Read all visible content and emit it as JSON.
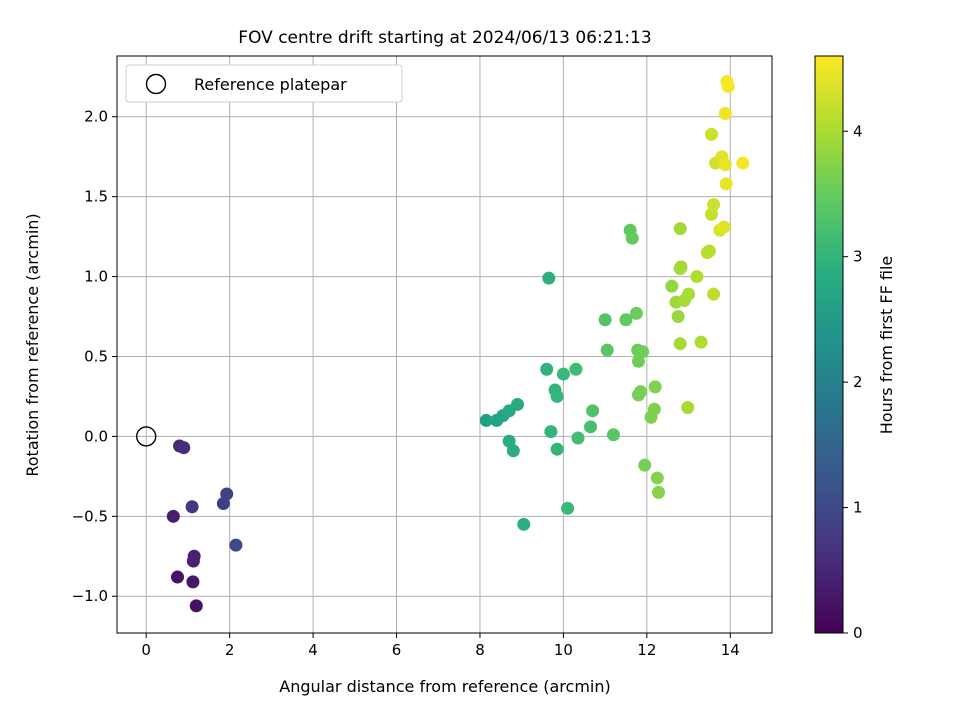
{
  "chart_data": {
    "type": "scatter",
    "title": "FOV centre drift starting at 2024/06/13 06:21:13",
    "xlabel": "Angular distance from reference (arcmin)",
    "ylabel": "Rotation from reference (arcmin)",
    "xlim": [
      -0.7,
      15.0
    ],
    "ylim": [
      -1.23,
      2.38
    ],
    "xticks": [
      0,
      2,
      4,
      6,
      8,
      10,
      12,
      14
    ],
    "xtick_labels": [
      "0",
      "2",
      "4",
      "6",
      "8",
      "10",
      "12",
      "14"
    ],
    "yticks": [
      -1.0,
      -0.5,
      0.0,
      0.5,
      1.0,
      1.5,
      2.0
    ],
    "ytick_labels": [
      "−1.0",
      "−0.5",
      "0.0",
      "0.5",
      "1.0",
      "1.5",
      "2.0"
    ],
    "grid": true,
    "legend": {
      "location": "upper left",
      "entries": [
        "Reference platepar"
      ]
    },
    "reference_point": {
      "x": 0.0,
      "y": 0.0
    },
    "colorbar": {
      "label": "Hours from first FF file",
      "colormap": "viridis",
      "range": [
        0,
        4.6
      ],
      "ticks": [
        0,
        1,
        2,
        3,
        4
      ],
      "tick_labels": [
        "0",
        "1",
        "2",
        "3",
        "4"
      ]
    },
    "points": [
      {
        "x": 1.2,
        "y": -1.06,
        "c": 0.2
      },
      {
        "x": 0.75,
        "y": -0.88,
        "c": 0.25
      },
      {
        "x": 1.12,
        "y": -0.91,
        "c": 0.3
      },
      {
        "x": 0.65,
        "y": -0.5,
        "c": 0.35
      },
      {
        "x": 1.15,
        "y": -0.75,
        "c": 0.4
      },
      {
        "x": 1.13,
        "y": -0.78,
        "c": 0.45
      },
      {
        "x": 0.8,
        "y": -0.06,
        "c": 0.5
      },
      {
        "x": 0.9,
        "y": -0.07,
        "c": 0.6
      },
      {
        "x": 1.1,
        "y": -0.44,
        "c": 0.75
      },
      {
        "x": 1.85,
        "y": -0.42,
        "c": 0.85
      },
      {
        "x": 1.93,
        "y": -0.36,
        "c": 0.9
      },
      {
        "x": 2.15,
        "y": -0.68,
        "c": 1.0
      },
      {
        "x": 8.15,
        "y": 0.1,
        "c": 2.6
      },
      {
        "x": 8.4,
        "y": 0.1,
        "c": 2.65
      },
      {
        "x": 8.55,
        "y": 0.13,
        "c": 2.7
      },
      {
        "x": 8.7,
        "y": 0.16,
        "c": 2.75
      },
      {
        "x": 8.9,
        "y": 0.2,
        "c": 2.8
      },
      {
        "x": 8.7,
        "y": -0.03,
        "c": 2.82
      },
      {
        "x": 8.8,
        "y": -0.09,
        "c": 2.85
      },
      {
        "x": 9.05,
        "y": -0.55,
        "c": 2.9
      },
      {
        "x": 9.65,
        "y": 0.99,
        "c": 2.9
      },
      {
        "x": 9.6,
        "y": 0.42,
        "c": 2.95
      },
      {
        "x": 9.7,
        "y": 0.03,
        "c": 3.0
      },
      {
        "x": 9.8,
        "y": 0.29,
        "c": 3.0
      },
      {
        "x": 9.85,
        "y": 0.25,
        "c": 3.05
      },
      {
        "x": 9.85,
        "y": -0.08,
        "c": 3.05
      },
      {
        "x": 10.0,
        "y": 0.39,
        "c": 3.1
      },
      {
        "x": 10.1,
        "y": -0.45,
        "c": 3.1
      },
      {
        "x": 10.3,
        "y": 0.42,
        "c": 3.15
      },
      {
        "x": 10.35,
        "y": -0.01,
        "c": 3.2
      },
      {
        "x": 10.65,
        "y": 0.06,
        "c": 3.25
      },
      {
        "x": 10.7,
        "y": 0.16,
        "c": 3.3
      },
      {
        "x": 11.0,
        "y": 0.73,
        "c": 3.35
      },
      {
        "x": 11.05,
        "y": 0.54,
        "c": 3.4
      },
      {
        "x": 11.2,
        "y": 0.01,
        "c": 3.4
      },
      {
        "x": 11.5,
        "y": 0.73,
        "c": 3.45
      },
      {
        "x": 11.6,
        "y": 1.29,
        "c": 3.45
      },
      {
        "x": 11.65,
        "y": 1.24,
        "c": 3.5
      },
      {
        "x": 11.75,
        "y": 0.77,
        "c": 3.55
      },
      {
        "x": 11.78,
        "y": 0.54,
        "c": 3.55
      },
      {
        "x": 11.8,
        "y": 0.47,
        "c": 3.6
      },
      {
        "x": 11.9,
        "y": 0.53,
        "c": 3.6
      },
      {
        "x": 11.8,
        "y": 0.26,
        "c": 3.62
      },
      {
        "x": 11.85,
        "y": 0.28,
        "c": 3.65
      },
      {
        "x": 11.95,
        "y": -0.18,
        "c": 3.65
      },
      {
        "x": 12.1,
        "y": 0.12,
        "c": 3.7
      },
      {
        "x": 12.18,
        "y": 0.17,
        "c": 3.7
      },
      {
        "x": 12.2,
        "y": 0.31,
        "c": 3.72
      },
      {
        "x": 12.25,
        "y": -0.26,
        "c": 3.75
      },
      {
        "x": 12.28,
        "y": -0.35,
        "c": 3.75
      },
      {
        "x": 12.6,
        "y": 0.94,
        "c": 3.85
      },
      {
        "x": 12.7,
        "y": 0.84,
        "c": 3.9
      },
      {
        "x": 12.75,
        "y": 0.75,
        "c": 3.9
      },
      {
        "x": 12.8,
        "y": 1.3,
        "c": 3.95
      },
      {
        "x": 12.8,
        "y": 1.05,
        "c": 3.95
      },
      {
        "x": 12.82,
        "y": 1.06,
        "c": 3.98
      },
      {
        "x": 12.8,
        "y": 0.58,
        "c": 3.98
      },
      {
        "x": 12.9,
        "y": 0.85,
        "c": 4.0
      },
      {
        "x": 13.0,
        "y": 0.89,
        "c": 4.0
      },
      {
        "x": 12.98,
        "y": 0.18,
        "c": 4.0
      },
      {
        "x": 13.2,
        "y": 1.0,
        "c": 4.05
      },
      {
        "x": 13.3,
        "y": 0.59,
        "c": 4.05
      },
      {
        "x": 13.45,
        "y": 1.15,
        "c": 4.1
      },
      {
        "x": 13.5,
        "y": 1.16,
        "c": 4.1
      },
      {
        "x": 13.6,
        "y": 0.89,
        "c": 4.15
      },
      {
        "x": 13.55,
        "y": 1.39,
        "c": 4.2
      },
      {
        "x": 13.6,
        "y": 1.45,
        "c": 4.25
      },
      {
        "x": 13.55,
        "y": 1.89,
        "c": 4.25
      },
      {
        "x": 13.65,
        "y": 1.71,
        "c": 4.3
      },
      {
        "x": 13.75,
        "y": 1.29,
        "c": 4.35
      },
      {
        "x": 13.85,
        "y": 1.31,
        "c": 4.4
      },
      {
        "x": 13.8,
        "y": 1.75,
        "c": 4.4
      },
      {
        "x": 13.88,
        "y": 1.7,
        "c": 4.45
      },
      {
        "x": 13.9,
        "y": 1.58,
        "c": 4.45
      },
      {
        "x": 13.88,
        "y": 2.02,
        "c": 4.5
      },
      {
        "x": 13.92,
        "y": 2.22,
        "c": 4.55
      },
      {
        "x": 13.95,
        "y": 2.19,
        "c": 4.55
      },
      {
        "x": 14.3,
        "y": 1.71,
        "c": 4.55
      }
    ]
  }
}
